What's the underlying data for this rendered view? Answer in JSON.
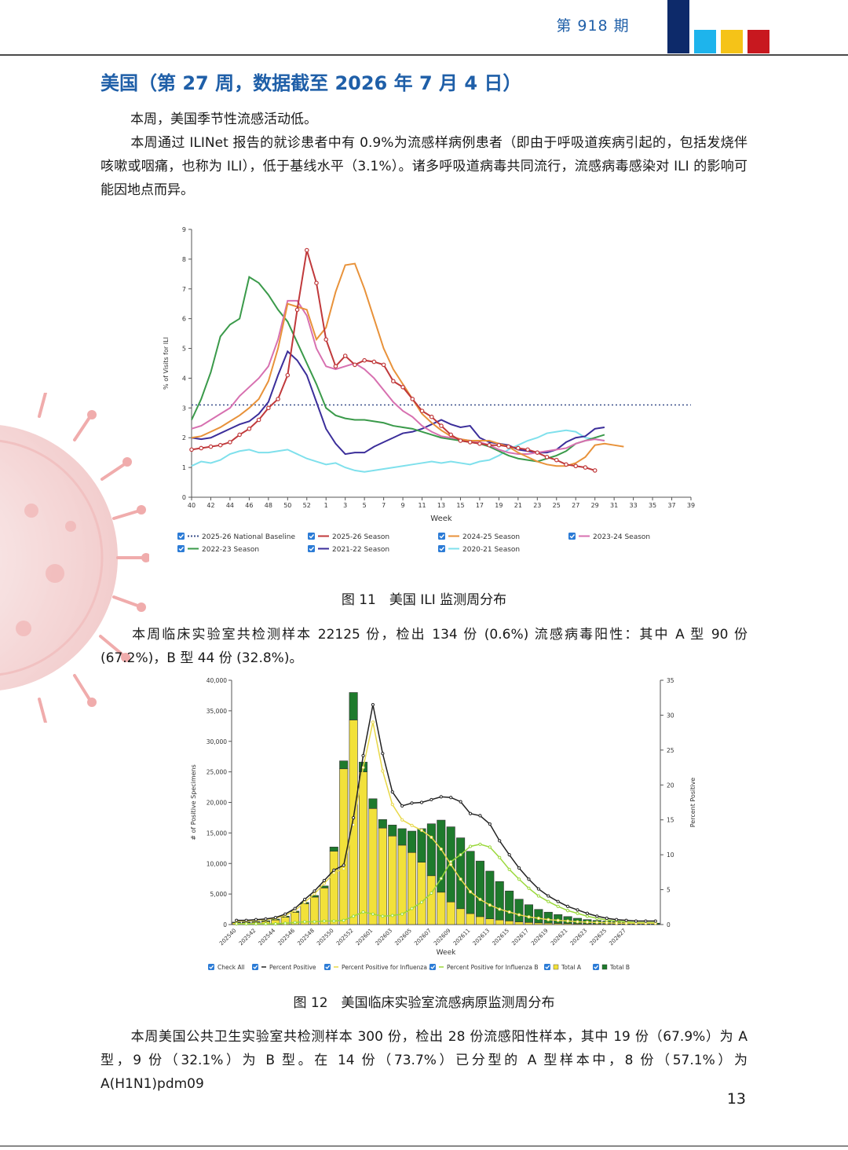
{
  "header": {
    "issue": "第 918 期",
    "colors": {
      "navy": "#0d2a6a",
      "cyan": "#1eb4ec",
      "yellow": "#f5c318",
      "red": "#c8181f"
    }
  },
  "heading": "美国（第 27 周，数据截至 2026 年 7 月 4 日）",
  "paragraphs": {
    "p1": "本周，美国季节性流感活动低。",
    "p2": "本周通过 ILINet 报告的就诊患者中有 0.9%为流感样病例患者（即由于呼吸道疾病引起的，包括发烧伴咳嗽或咽痛，也称为 ILI），低于基线水平（3.1%）。诸多呼吸道病毒共同流行，流感病毒感染对 ILI 的影响可能因地点而异。",
    "p3": "本周临床实验室共检测样本 22125 份，检出 134 份 (0.6%) 流感病毒阳性：其中 A 型 90 份 (67.2%)，B 型 44 份 (32.8%)。",
    "p4": "本周美国公共卫生实验室共检测样本 300 份，检出 28 份流感阳性样本，其中 19 份（67.9%）为 A 型，9 份（32.1%）为 B 型。在 14 份（73.7%）已分型的 A 型样本中，8 份（57.1%）为 A(H1N1)pdm09"
  },
  "captions": {
    "fig11": "图 11　美国 ILI 监测周分布",
    "fig12": "图 12　美国临床实验室流感病原监测周分布"
  },
  "page_number": "13",
  "chart_data": [
    {
      "type": "line",
      "title": "",
      "xlabel": "Week",
      "ylabel": "% of Visits for ILI",
      "ylim": [
        0,
        9
      ],
      "x_ticks": [
        "40",
        "42",
        "44",
        "46",
        "48",
        "50",
        "52",
        "1",
        "3",
        "5",
        "7",
        "9",
        "11",
        "13",
        "15",
        "17",
        "19",
        "21",
        "23",
        "25",
        "27",
        "29",
        "31",
        "33",
        "35",
        "37",
        "39"
      ],
      "y_ticks": [
        "0",
        "1",
        "2",
        "3",
        "4",
        "5",
        "6",
        "7",
        "8",
        "9"
      ],
      "baseline": {
        "name": "2025-26 National Baseline",
        "value": 3.1,
        "color": "#3a4f8a"
      },
      "series": [
        {
          "name": "2025-26 Season",
          "color": "#c0393b",
          "markers": true,
          "values": [
            1.6,
            1.65,
            1.7,
            1.75,
            1.85,
            2.1,
            2.3,
            2.6,
            3.0,
            3.3,
            4.1,
            6.3,
            8.3,
            7.2,
            5.3,
            4.4,
            4.75,
            4.45,
            4.6,
            4.55,
            4.45,
            3.9,
            3.7,
            3.3,
            2.9,
            2.7,
            2.4,
            2.1,
            1.9,
            1.85,
            1.8,
            1.75,
            1.75,
            1.7,
            1.65,
            1.6,
            1.5,
            1.35,
            1.25,
            1.1,
            1.05,
            1.0,
            0.9
          ]
        },
        {
          "name": "2024-25 Season",
          "color": "#e8923a",
          "values": [
            2.0,
            2.05,
            2.2,
            2.35,
            2.55,
            2.75,
            3.0,
            3.3,
            3.9,
            5.0,
            6.5,
            6.4,
            6.3,
            5.3,
            5.7,
            6.9,
            7.8,
            7.85,
            7.0,
            6.0,
            5.0,
            4.3,
            3.8,
            3.3,
            2.8,
            2.5,
            2.25,
            2.05,
            1.95,
            1.9,
            1.9,
            1.9,
            1.8,
            1.7,
            1.5,
            1.35,
            1.2,
            1.1,
            1.05,
            1.05,
            1.15,
            1.35,
            1.75,
            1.8,
            1.75,
            1.7
          ]
        },
        {
          "name": "2023-24 Season",
          "color": "#d770b0",
          "values": [
            2.3,
            2.4,
            2.6,
            2.8,
            3.0,
            3.4,
            3.7,
            4.0,
            4.4,
            5.3,
            6.6,
            6.6,
            6.1,
            5.0,
            4.4,
            4.3,
            4.4,
            4.5,
            4.3,
            4.0,
            3.6,
            3.2,
            2.9,
            2.7,
            2.4,
            2.2,
            2.05,
            2.0,
            1.95,
            1.9,
            1.85,
            1.75,
            1.6,
            1.5,
            1.45,
            1.45,
            1.5,
            1.55,
            1.6,
            1.65,
            1.8,
            1.9,
            1.95,
            1.9
          ]
        },
        {
          "name": "2022-23 Season",
          "color": "#3a9a4a",
          "values": [
            2.6,
            3.3,
            4.2,
            5.4,
            5.8,
            6.0,
            7.4,
            7.2,
            6.8,
            6.3,
            5.9,
            5.2,
            4.5,
            3.8,
            3.0,
            2.75,
            2.65,
            2.6,
            2.6,
            2.55,
            2.5,
            2.4,
            2.35,
            2.3,
            2.2,
            2.1,
            2.0,
            1.95,
            1.9,
            1.85,
            1.8,
            1.7,
            1.55,
            1.4,
            1.3,
            1.25,
            1.2,
            1.3,
            1.4,
            1.55,
            1.8,
            1.9,
            2.0,
            2.1
          ]
        },
        {
          "name": "2021-22 Season",
          "color": "#3b2e9a",
          "values": [
            2.0,
            1.95,
            2.0,
            2.15,
            2.3,
            2.45,
            2.55,
            2.8,
            3.2,
            4.1,
            4.9,
            4.6,
            4.1,
            3.2,
            2.3,
            1.8,
            1.45,
            1.5,
            1.5,
            1.7,
            1.85,
            2.0,
            2.15,
            2.2,
            2.3,
            2.45,
            2.6,
            2.45,
            2.35,
            2.4,
            2.0,
            1.85,
            1.8,
            1.75,
            1.6,
            1.55,
            1.5,
            1.5,
            1.6,
            1.85,
            2.0,
            2.05,
            2.3,
            2.35
          ]
        },
        {
          "name": "2020-21 Season",
          "color": "#7fe0ec",
          "values": [
            1.05,
            1.2,
            1.15,
            1.25,
            1.45,
            1.55,
            1.6,
            1.5,
            1.5,
            1.55,
            1.6,
            1.45,
            1.3,
            1.2,
            1.1,
            1.15,
            1.0,
            0.9,
            0.85,
            0.9,
            0.95,
            1.0,
            1.05,
            1.1,
            1.15,
            1.2,
            1.15,
            1.2,
            1.15,
            1.1,
            1.2,
            1.25,
            1.4,
            1.6,
            1.75,
            1.9,
            2.0,
            2.15,
            2.2,
            2.25,
            2.2,
            2.0,
            1.95,
            1.9
          ]
        }
      ]
    },
    {
      "type": "bar",
      "title": "",
      "xlabel": "Week",
      "ylabel": "# of Positive Specimens",
      "y2label": "Percent Positive",
      "ylim": [
        0,
        40000
      ],
      "y2lim": [
        0,
        35
      ],
      "x_ticks": [
        "202540",
        "202542",
        "202544",
        "202546",
        "202548",
        "202550",
        "202552",
        "202601",
        "202603",
        "202605",
        "202607",
        "202609",
        "202611",
        "202613",
        "202615",
        "202617",
        "202619",
        "202621",
        "202623",
        "202625",
        "202627"
      ],
      "y_ticks": [
        "0",
        "5,000",
        "10,000",
        "15,000",
        "20,000",
        "25,000",
        "30,000",
        "35,000",
        "40,000"
      ],
      "y2_ticks": [
        "0",
        "5",
        "10",
        "15",
        "20",
        "25",
        "30",
        "35"
      ],
      "legend": [
        "Check All",
        "Percent Positive",
        "Percent Positive for Influenza A",
        "Percent Positive for Influenza B",
        "Total A",
        "Total B"
      ],
      "colors": {
        "total_a": "#f2e13a",
        "total_b": "#1e7a2c",
        "pct": "#222222",
        "pct_a": "#e8d848",
        "pct_b": "#9ad83a"
      },
      "series": [
        {
          "name": "Total A",
          "values": [
            300,
            320,
            380,
            500,
            750,
            1200,
            2000,
            3400,
            4500,
            6000,
            12000,
            25500,
            33500,
            25000,
            19000,
            15800,
            14500,
            13000,
            11800,
            10200,
            8000,
            5300,
            3700,
            2600,
            1800,
            1300,
            950,
            750,
            600,
            450,
            350,
            280,
            230,
            190,
            160,
            130,
            110,
            100,
            90,
            80,
            70,
            60,
            50,
            40
          ]
        },
        {
          "name": "Total B",
          "values": [
            100,
            110,
            120,
            130,
            150,
            170,
            200,
            220,
            260,
            320,
            700,
            1300,
            4500,
            1600,
            1600,
            1400,
            1800,
            2700,
            3500,
            5500,
            8500,
            11800,
            12300,
            11600,
            10200,
            9100,
            7800,
            6300,
            4900,
            3700,
            2900,
            2200,
            1800,
            1450,
            1150,
            900,
            700,
            580,
            470,
            390,
            320,
            270,
            230,
            190
          ]
        },
        {
          "name": "Percent Positive",
          "values": [
            0.6,
            0.6,
            0.7,
            0.8,
            1.0,
            1.5,
            2.3,
            3.6,
            4.8,
            6.3,
            7.8,
            8.5,
            15.3,
            24.2,
            31.5,
            24.5,
            19.0,
            17.0,
            17.4,
            17.5,
            17.9,
            18.3,
            18.2,
            17.6,
            15.9,
            15.6,
            14.4,
            12.0,
            10.0,
            8.1,
            6.5,
            5.1,
            4.1,
            3.3,
            2.6,
            2.1,
            1.6,
            1.2,
            0.9,
            0.7,
            0.6,
            0.5,
            0.5,
            0.5
          ]
        },
        {
          "name": "Percent Positive for Influenza A",
          "values": [
            0.5,
            0.5,
            0.6,
            0.7,
            0.9,
            1.3,
            2.0,
            3.2,
            4.4,
            5.9,
            7.4,
            8.0,
            14.3,
            22.5,
            29.0,
            22.0,
            17.2,
            15.0,
            14.2,
            13.5,
            12.5,
            10.8,
            8.6,
            6.5,
            4.7,
            3.6,
            2.8,
            2.2,
            1.8,
            1.4,
            1.1,
            0.9,
            0.7,
            0.6,
            0.5,
            0.4,
            0.35,
            0.3,
            0.25,
            0.2,
            0.2,
            0.2,
            0.2,
            0.2
          ]
        },
        {
          "name": "Percent Positive for Influenza B",
          "values": [
            0.1,
            0.1,
            0.1,
            0.1,
            0.1,
            0.2,
            0.3,
            0.4,
            0.4,
            0.5,
            0.5,
            0.6,
            1.2,
            1.8,
            1.5,
            1.2,
            1.3,
            1.5,
            2.3,
            3.2,
            4.5,
            6.6,
            9.0,
            10.0,
            11.2,
            11.5,
            11.1,
            9.6,
            7.9,
            6.5,
            5.2,
            4.1,
            3.3,
            2.6,
            2.0,
            1.6,
            1.2,
            0.9,
            0.65,
            0.5,
            0.4,
            0.3,
            0.3,
            0.3
          ]
        }
      ]
    }
  ]
}
